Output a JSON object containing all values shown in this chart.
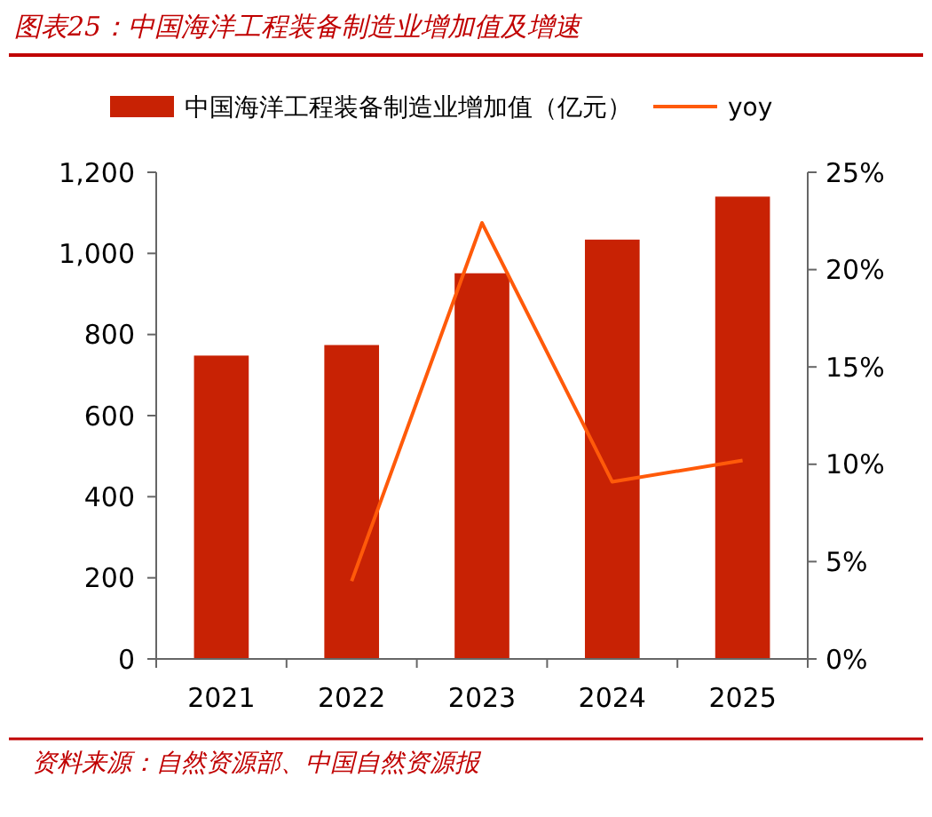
{
  "chart_data": {
    "type": "bar",
    "title": "图表25：中国海洋工程装备制造业增加值及增速",
    "categories": [
      "2021",
      "2022",
      "2023",
      "2024",
      "2025"
    ],
    "series": [
      {
        "name": "中国海洋工程装备制造业增加值（亿元）",
        "color": "#c82204",
        "values": [
          748,
          774,
          951,
          1034,
          1140
        ]
      },
      {
        "name": "yoy",
        "type": "line",
        "axis": "y2",
        "color": "#ff5a0a",
        "values": [
          null,
          4.0,
          22.4,
          9.1,
          10.2
        ]
      }
    ],
    "ylim": [
      0,
      1200
    ],
    "yticks": [
      0,
      {
        "value": 200,
        "label": "200"
      },
      {
        "value": 400,
        "label": "400"
      },
      {
        "value": 600,
        "label": "600"
      },
      {
        "value": 800,
        "label": "800"
      },
      {
        "value": 1000,
        "label": "1,000"
      },
      {
        "value": 1200,
        "label": "1,200"
      }
    ],
    "y2lim": [
      0,
      25
    ],
    "y2ticks": [
      {
        "value": 0,
        "label": "0%"
      },
      {
        "value": 5,
        "label": "5%"
      },
      {
        "value": 10,
        "label": "10%"
      },
      {
        "value": 15,
        "label": "15%"
      },
      {
        "value": 20,
        "label": "20%"
      },
      {
        "value": 25,
        "label": "25%"
      }
    ],
    "legend": "top",
    "grid": false,
    "marker": "none",
    "line_style": "solid",
    "annotations": [
      "资料来源：自然资源部、中国自然资源报"
    ]
  }
}
